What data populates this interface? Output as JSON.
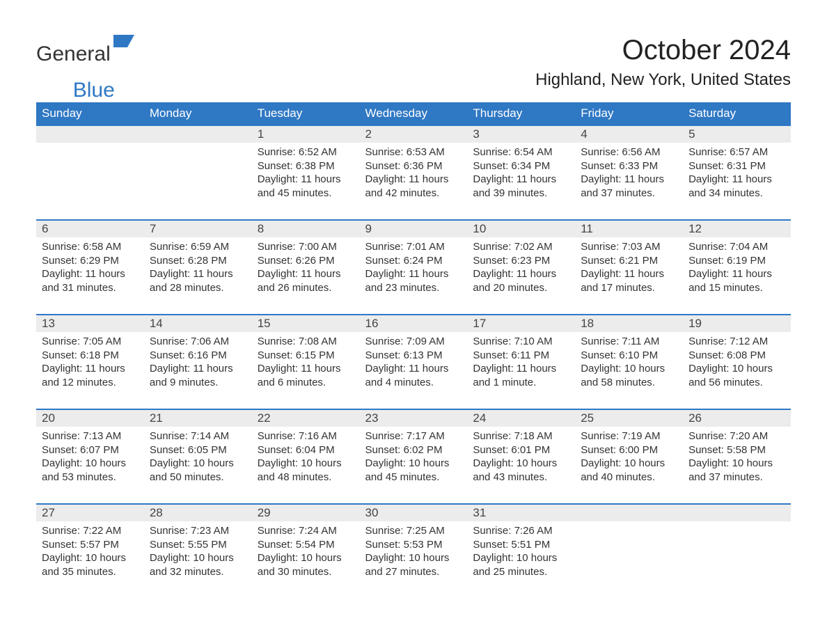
{
  "logo": {
    "text1": "General",
    "text2": "Blue",
    "shape_color": "#2f78c4"
  },
  "title": "October 2024",
  "subtitle": "Highland, New York, United States",
  "colors": {
    "header_bg": "#2f78c4",
    "header_text": "#ffffff",
    "daynum_bg": "#ececec",
    "row_border": "#2f78c4",
    "body_bg": "#ffffff",
    "text": "#333333"
  },
  "typography": {
    "title_fontsize": 40,
    "subtitle_fontsize": 24,
    "header_fontsize": 17,
    "daynum_fontsize": 17,
    "body_fontsize": 15
  },
  "day_labels": [
    "Sunday",
    "Monday",
    "Tuesday",
    "Wednesday",
    "Thursday",
    "Friday",
    "Saturday"
  ],
  "weeks": [
    [
      null,
      null,
      {
        "n": "1",
        "sr": "6:52 AM",
        "ss": "6:38 PM",
        "dl": "11 hours and 45 minutes."
      },
      {
        "n": "2",
        "sr": "6:53 AM",
        "ss": "6:36 PM",
        "dl": "11 hours and 42 minutes."
      },
      {
        "n": "3",
        "sr": "6:54 AM",
        "ss": "6:34 PM",
        "dl": "11 hours and 39 minutes."
      },
      {
        "n": "4",
        "sr": "6:56 AM",
        "ss": "6:33 PM",
        "dl": "11 hours and 37 minutes."
      },
      {
        "n": "5",
        "sr": "6:57 AM",
        "ss": "6:31 PM",
        "dl": "11 hours and 34 minutes."
      }
    ],
    [
      {
        "n": "6",
        "sr": "6:58 AM",
        "ss": "6:29 PM",
        "dl": "11 hours and 31 minutes."
      },
      {
        "n": "7",
        "sr": "6:59 AM",
        "ss": "6:28 PM",
        "dl": "11 hours and 28 minutes."
      },
      {
        "n": "8",
        "sr": "7:00 AM",
        "ss": "6:26 PM",
        "dl": "11 hours and 26 minutes."
      },
      {
        "n": "9",
        "sr": "7:01 AM",
        "ss": "6:24 PM",
        "dl": "11 hours and 23 minutes."
      },
      {
        "n": "10",
        "sr": "7:02 AM",
        "ss": "6:23 PM",
        "dl": "11 hours and 20 minutes."
      },
      {
        "n": "11",
        "sr": "7:03 AM",
        "ss": "6:21 PM",
        "dl": "11 hours and 17 minutes."
      },
      {
        "n": "12",
        "sr": "7:04 AM",
        "ss": "6:19 PM",
        "dl": "11 hours and 15 minutes."
      }
    ],
    [
      {
        "n": "13",
        "sr": "7:05 AM",
        "ss": "6:18 PM",
        "dl": "11 hours and 12 minutes."
      },
      {
        "n": "14",
        "sr": "7:06 AM",
        "ss": "6:16 PM",
        "dl": "11 hours and 9 minutes."
      },
      {
        "n": "15",
        "sr": "7:08 AM",
        "ss": "6:15 PM",
        "dl": "11 hours and 6 minutes."
      },
      {
        "n": "16",
        "sr": "7:09 AM",
        "ss": "6:13 PM",
        "dl": "11 hours and 4 minutes."
      },
      {
        "n": "17",
        "sr": "7:10 AM",
        "ss": "6:11 PM",
        "dl": "11 hours and 1 minute."
      },
      {
        "n": "18",
        "sr": "7:11 AM",
        "ss": "6:10 PM",
        "dl": "10 hours and 58 minutes."
      },
      {
        "n": "19",
        "sr": "7:12 AM",
        "ss": "6:08 PM",
        "dl": "10 hours and 56 minutes."
      }
    ],
    [
      {
        "n": "20",
        "sr": "7:13 AM",
        "ss": "6:07 PM",
        "dl": "10 hours and 53 minutes."
      },
      {
        "n": "21",
        "sr": "7:14 AM",
        "ss": "6:05 PM",
        "dl": "10 hours and 50 minutes."
      },
      {
        "n": "22",
        "sr": "7:16 AM",
        "ss": "6:04 PM",
        "dl": "10 hours and 48 minutes."
      },
      {
        "n": "23",
        "sr": "7:17 AM",
        "ss": "6:02 PM",
        "dl": "10 hours and 45 minutes."
      },
      {
        "n": "24",
        "sr": "7:18 AM",
        "ss": "6:01 PM",
        "dl": "10 hours and 43 minutes."
      },
      {
        "n": "25",
        "sr": "7:19 AM",
        "ss": "6:00 PM",
        "dl": "10 hours and 40 minutes."
      },
      {
        "n": "26",
        "sr": "7:20 AM",
        "ss": "5:58 PM",
        "dl": "10 hours and 37 minutes."
      }
    ],
    [
      {
        "n": "27",
        "sr": "7:22 AM",
        "ss": "5:57 PM",
        "dl": "10 hours and 35 minutes."
      },
      {
        "n": "28",
        "sr": "7:23 AM",
        "ss": "5:55 PM",
        "dl": "10 hours and 32 minutes."
      },
      {
        "n": "29",
        "sr": "7:24 AM",
        "ss": "5:54 PM",
        "dl": "10 hours and 30 minutes."
      },
      {
        "n": "30",
        "sr": "7:25 AM",
        "ss": "5:53 PM",
        "dl": "10 hours and 27 minutes."
      },
      {
        "n": "31",
        "sr": "7:26 AM",
        "ss": "5:51 PM",
        "dl": "10 hours and 25 minutes."
      },
      null,
      null
    ]
  ],
  "labels": {
    "sunrise": "Sunrise: ",
    "sunset": "Sunset: ",
    "daylight": "Daylight: "
  }
}
